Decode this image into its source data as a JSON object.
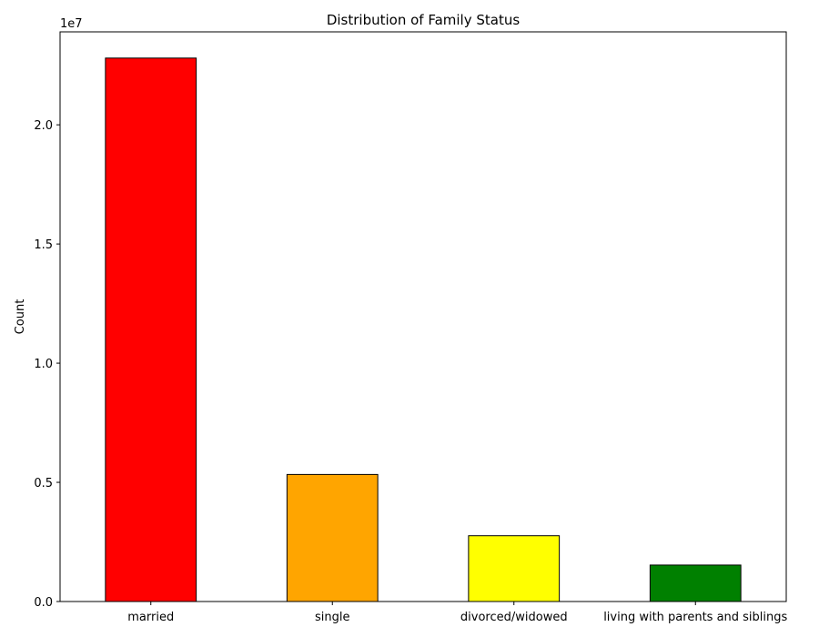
{
  "chart_data": {
    "type": "bar",
    "title": "Distribution of Family Status",
    "xlabel": "",
    "ylabel": "Count",
    "y_offset_label": "1e7",
    "y_scale": 10000000,
    "categories": [
      "married",
      "single",
      "divorced/widowed",
      "living with parents and siblings"
    ],
    "values": [
      22800000,
      5330000,
      2760000,
      1530000
    ],
    "colors": [
      "#ff0000",
      "#ffa500",
      "#ffff00",
      "#008000"
    ],
    "bar_edge_color": "#000000",
    "ylim": [
      0,
      23900000
    ],
    "yticks": [
      0,
      5000000,
      10000000,
      15000000,
      20000000
    ],
    "ytick_labels": [
      "0.0",
      "0.5",
      "1.0",
      "1.5",
      "2.0"
    ],
    "grid": false,
    "legend": "none"
  }
}
